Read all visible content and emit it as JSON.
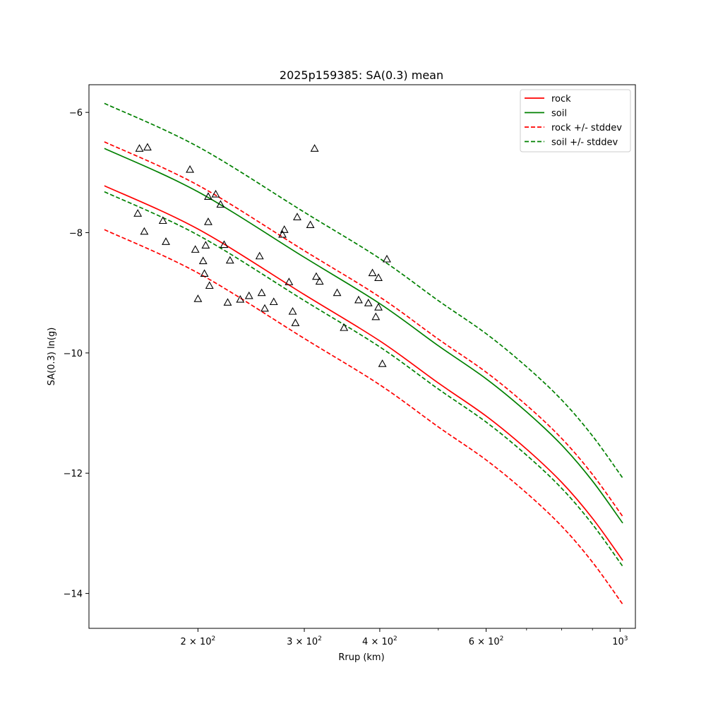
{
  "chart_data": {
    "type": "line",
    "title": "2025p159385: SA(0.3) mean",
    "xlabel": "Rrup (km)",
    "ylabel": "SA(0.3) ln(g)",
    "x_scale": "log",
    "xlim": [
      132,
      1060
    ],
    "ylim": [
      -14.58,
      -5.54
    ],
    "x_ticks": [
      {
        "value": 200,
        "mantissa": "2",
        "exp": "2"
      },
      {
        "value": 300,
        "mantissa": "3",
        "exp": "2"
      },
      {
        "value": 400,
        "mantissa": "4",
        "exp": "2"
      },
      {
        "value": 600,
        "mantissa": "6",
        "exp": "2"
      },
      {
        "value": 1000,
        "mantissa": "10",
        "exp": "3"
      }
    ],
    "x_minor_ticks": [
      500,
      700,
      800,
      900
    ],
    "y_ticks": [
      -6,
      -8,
      -10,
      -12,
      -14
    ],
    "y_tick_labels": [
      "−6",
      "−8",
      "−10",
      "−12",
      "−14"
    ],
    "grid": false,
    "legend_position": "top-right",
    "series": [
      {
        "name": "rock",
        "color": "#ff0000",
        "dash": "solid",
        "x": [
          140,
          200,
          300,
          400,
          500,
          600,
          700,
          800,
          900,
          1010
        ],
        "y": [
          -7.22,
          -7.94,
          -9.03,
          -9.8,
          -10.5,
          -11.05,
          -11.6,
          -12.15,
          -12.75,
          -13.45
        ]
      },
      {
        "name": "soil",
        "color": "#008000",
        "dash": "solid",
        "x": [
          140,
          200,
          300,
          400,
          500,
          600,
          700,
          800,
          900,
          1010
        ],
        "y": [
          -6.6,
          -7.32,
          -8.41,
          -9.18,
          -9.88,
          -10.43,
          -10.98,
          -11.53,
          -12.13,
          -12.83
        ]
      },
      {
        "name": "rock +/- stddev",
        "color": "#ff0000",
        "dash": "dashed",
        "x": [
          140,
          200,
          300,
          400,
          500,
          600,
          700,
          800,
          900,
          1010
        ],
        "y": [
          -6.49,
          -7.21,
          -8.3,
          -9.07,
          -9.77,
          -10.32,
          -10.87,
          -11.42,
          -12.02,
          -12.72
        ]
      },
      {
        "name": "",
        "color": "#ff0000",
        "dash": "dashed",
        "x": [
          140,
          200,
          300,
          400,
          500,
          600,
          700,
          800,
          900,
          1010
        ],
        "y": [
          -7.95,
          -8.67,
          -9.76,
          -10.53,
          -11.23,
          -11.78,
          -12.33,
          -12.88,
          -13.48,
          -14.18
        ]
      },
      {
        "name": "soil +/- stddev",
        "color": "#008000",
        "dash": "dashed",
        "x": [
          140,
          200,
          300,
          400,
          500,
          600,
          700,
          800,
          900,
          1010
        ],
        "y": [
          -5.85,
          -6.57,
          -7.66,
          -8.43,
          -9.13,
          -9.68,
          -10.23,
          -10.78,
          -11.38,
          -12.08
        ]
      },
      {
        "name": "",
        "color": "#008000",
        "dash": "dashed",
        "x": [
          140,
          200,
          300,
          400,
          500,
          600,
          700,
          800,
          900,
          1010
        ],
        "y": [
          -7.32,
          -8.04,
          -9.13,
          -9.9,
          -10.6,
          -11.15,
          -11.7,
          -12.25,
          -12.85,
          -13.55
        ]
      }
    ],
    "legend": [
      {
        "label": "rock",
        "color": "#ff0000",
        "dash": "solid"
      },
      {
        "label": "soil",
        "color": "#008000",
        "dash": "solid"
      },
      {
        "label": "rock +/- stddev",
        "color": "#ff0000",
        "dash": "dashed"
      },
      {
        "label": "soil +/- stddev",
        "color": "#008000",
        "dash": "dashed"
      }
    ],
    "observations": {
      "marker": "triangle",
      "color": "#000000",
      "points": [
        [
          160,
          -6.6
        ],
        [
          165,
          -6.58
        ],
        [
          159,
          -7.68
        ],
        [
          163,
          -7.98
        ],
        [
          175,
          -7.8
        ],
        [
          177,
          -8.15
        ],
        [
          194,
          -6.95
        ],
        [
          198,
          -8.28
        ],
        [
          200,
          -9.1
        ],
        [
          204,
          -8.47
        ],
        [
          205,
          -8.68
        ],
        [
          206,
          -8.21
        ],
        [
          208,
          -7.4
        ],
        [
          208,
          -7.82
        ],
        [
          209,
          -8.88
        ],
        [
          214,
          -7.36
        ],
        [
          218,
          -7.53
        ],
        [
          221,
          -8.2
        ],
        [
          224,
          -9.16
        ],
        [
          226,
          -8.46
        ],
        [
          235,
          -9.11
        ],
        [
          243,
          -9.05
        ],
        [
          253,
          -8.39
        ],
        [
          255,
          -9.0
        ],
        [
          258,
          -9.26
        ],
        [
          267,
          -9.15
        ],
        [
          276,
          -8.03
        ],
        [
          278,
          -7.95
        ],
        [
          283,
          -8.82
        ],
        [
          287,
          -9.31
        ],
        [
          290,
          -9.5
        ],
        [
          292,
          -7.74
        ],
        [
          307,
          -7.87
        ],
        [
          312,
          -6.6
        ],
        [
          314,
          -8.73
        ],
        [
          318,
          -8.81
        ],
        [
          340,
          -9.0
        ],
        [
          349,
          -9.58
        ],
        [
          369,
          -9.12
        ],
        [
          383,
          -9.17
        ],
        [
          389,
          -8.67
        ],
        [
          394,
          -9.4
        ],
        [
          398,
          -9.24
        ],
        [
          398,
          -8.75
        ],
        [
          404,
          -10.18
        ],
        [
          411,
          -8.44
        ]
      ]
    }
  }
}
